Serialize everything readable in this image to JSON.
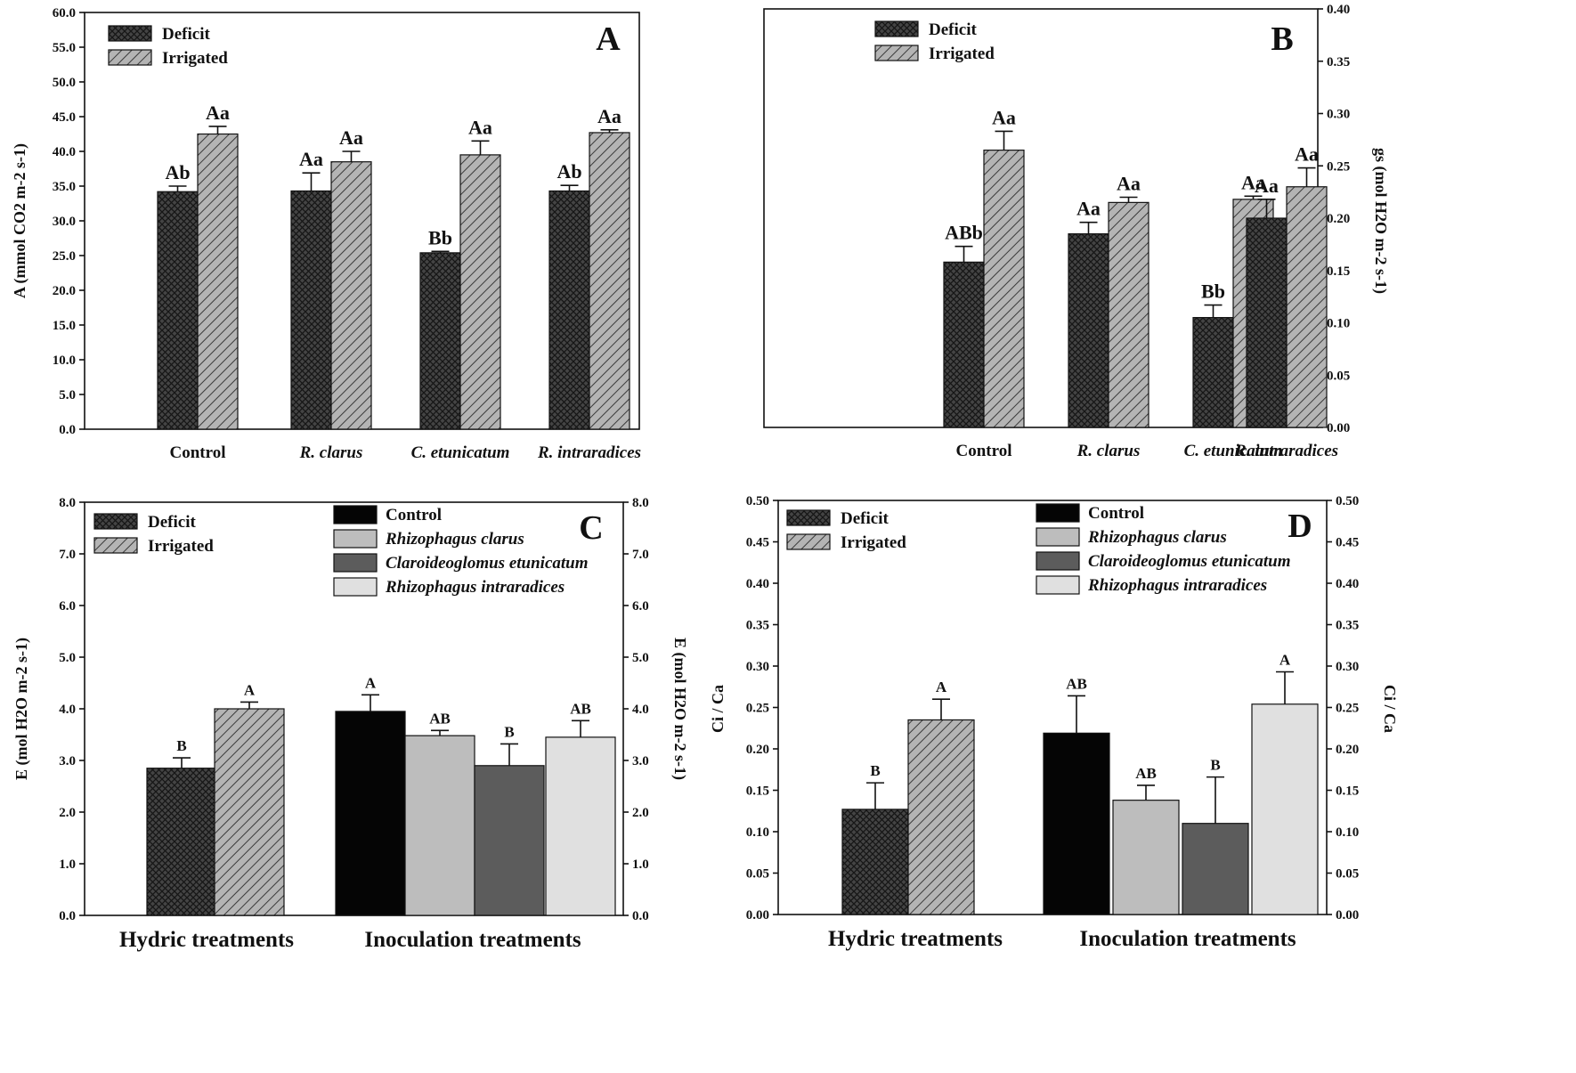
{
  "legend_hydric": [
    "Deficit",
    "Irrigated"
  ],
  "legend_inoc": [
    "Control",
    "Rhizophagus clarus",
    "Claroideoglomus etunicatum",
    "Rhizophagus intraradices"
  ],
  "colors": {
    "deficit": "#3c3c3c",
    "irrigated": "#a8a8a8",
    "control": "#050505",
    "r_clarus": "#bdbdbd",
    "c_etunicatum": "#5c5c5c",
    "r_intraradices": "#e0e0e0"
  },
  "chart_data": [
    {
      "panel": "A",
      "type": "bar",
      "categories": [
        "Control",
        "R. clarus",
        "C. etunicatum",
        "R. intraradices"
      ],
      "series": [
        {
          "name": "Deficit",
          "values": [
            34.2,
            34.3,
            25.4,
            34.3
          ],
          "errors": [
            0.8,
            2.6,
            0.2,
            0.8
          ],
          "labels": [
            "Ab",
            "Aa",
            "Bb",
            "Ab"
          ]
        },
        {
          "name": "Irrigated",
          "values": [
            42.5,
            38.5,
            39.5,
            42.7
          ],
          "errors": [
            1.1,
            1.5,
            2.0,
            0.4
          ],
          "labels": [
            "Aa",
            "Aa",
            "Aa",
            "Aa"
          ]
        }
      ],
      "ylabel": "A (mmol CO2 m-2 s-1)",
      "ylim": [
        0,
        60
      ],
      "yticks": [
        "0.0",
        "5.0",
        "10.0",
        "15.0",
        "20.0",
        "25.0",
        "30.0",
        "35.0",
        "40.0",
        "45.0",
        "50.0",
        "55.0",
        "60.0"
      ]
    },
    {
      "panel": "B",
      "type": "bar",
      "categories": [
        "Control",
        "R. clarus",
        "C. etunicatum",
        "R. intraradices"
      ],
      "series": [
        {
          "name": "Deficit",
          "values": [
            0.158,
            0.185,
            0.105,
            0.2
          ],
          "errors": [
            0.015,
            0.011,
            0.012,
            0.018
          ],
          "labels": [
            "ABb",
            "Aa",
            "Bb",
            "Aa"
          ]
        },
        {
          "name": "Irrigated",
          "values": [
            0.265,
            0.215,
            0.218,
            0.23
          ],
          "errors": [
            0.018,
            0.005,
            0.003,
            0.018
          ],
          "labels": [
            "Aa",
            "Aa",
            "Aa",
            "Aa"
          ]
        }
      ],
      "ylabel": "gs (mol H2O m-2 s-1)",
      "ylim": [
        0,
        0.4
      ],
      "yticks": [
        "0.00",
        "0.05",
        "0.10",
        "0.15",
        "0.20",
        "0.25",
        "0.30",
        "0.35",
        "0.40"
      ]
    },
    {
      "panel": "C",
      "type": "bar",
      "groups": [
        "Hydric treatments",
        "Inoculation treatments"
      ],
      "bars": [
        {
          "name": "Deficit",
          "value": 2.85,
          "error": 0.2,
          "label": "B"
        },
        {
          "name": "Irrigated",
          "value": 4.0,
          "error": 0.13,
          "label": "A"
        },
        {
          "name": "Control",
          "value": 3.95,
          "error": 0.32,
          "label": "A"
        },
        {
          "name": "Rhizophagus clarus",
          "value": 3.48,
          "error": 0.1,
          "label": "AB"
        },
        {
          "name": "Claroideoglomus etunicatum",
          "value": 2.9,
          "error": 0.42,
          "label": "B"
        },
        {
          "name": "Rhizophagus intraradices",
          "value": 3.45,
          "error": 0.32,
          "label": "AB"
        }
      ],
      "ylabel": "E (mol H2O m-2 s-1)",
      "ylim": [
        0,
        8
      ],
      "yticks": [
        "0.0",
        "1.0",
        "2.0",
        "3.0",
        "4.0",
        "5.0",
        "6.0",
        "7.0",
        "8.0"
      ]
    },
    {
      "panel": "D",
      "type": "bar",
      "groups": [
        "Hydric treatments",
        "Inoculation treatments"
      ],
      "bars": [
        {
          "name": "Deficit",
          "value": 0.127,
          "error": 0.032,
          "label": "B"
        },
        {
          "name": "Irrigated",
          "value": 0.235,
          "error": 0.025,
          "label": "A"
        },
        {
          "name": "Control",
          "value": 0.219,
          "error": 0.045,
          "label": "AB"
        },
        {
          "name": "Rhizophagus clarus",
          "value": 0.138,
          "error": 0.018,
          "label": "AB"
        },
        {
          "name": "Claroideoglomus etunicatum",
          "value": 0.11,
          "error": 0.056,
          "label": "B"
        },
        {
          "name": "Rhizophagus intraradices",
          "value": 0.254,
          "error": 0.039,
          "label": "A"
        }
      ],
      "ylabel": "Ci / Ca",
      "ylim": [
        0,
        0.5
      ],
      "yticks": [
        "0.00",
        "0.05",
        "0.10",
        "0.15",
        "0.20",
        "0.25",
        "0.30",
        "0.35",
        "0.40",
        "0.45",
        "0.50"
      ]
    }
  ]
}
